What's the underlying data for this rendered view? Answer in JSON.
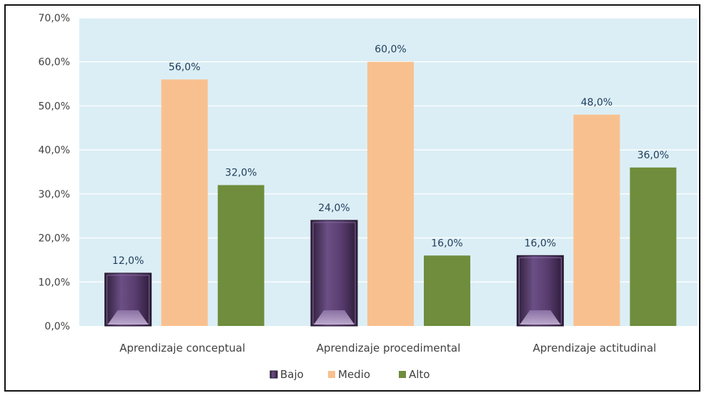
{
  "chart_data": {
    "type": "bar",
    "categories": [
      "Aprendizaje conceptual",
      "Aprendizaje procedimental",
      "Aprendizaje actitudinal"
    ],
    "series": [
      {
        "name": "Bajo",
        "values": [
          12.0,
          24.0,
          16.0
        ],
        "color": "#5b3f70"
      },
      {
        "name": "Medio",
        "values": [
          56.0,
          60.0,
          48.0
        ],
        "color": "#f9c08f"
      },
      {
        "name": "Alto",
        "values": [
          32.0,
          16.0,
          36.0
        ],
        "color": "#6f8d3c"
      }
    ],
    "value_labels": [
      [
        "12,0%",
        "24,0%",
        "16,0%"
      ],
      [
        "56,0%",
        "60,0%",
        "48,0%"
      ],
      [
        "32,0%",
        "16,0%",
        "36,0%"
      ]
    ],
    "y_ticks": [
      "0,0%",
      "10,0%",
      "20,0%",
      "30,0%",
      "40,0%",
      "50,0%",
      "60,0%",
      "70,0%"
    ],
    "ylim": [
      0,
      70
    ],
    "title": "",
    "xlabel": "",
    "ylabel": "",
    "grid": true,
    "legend_position": "bottom",
    "plot_background": "#dbeef5",
    "grid_color": "#ffffff"
  }
}
